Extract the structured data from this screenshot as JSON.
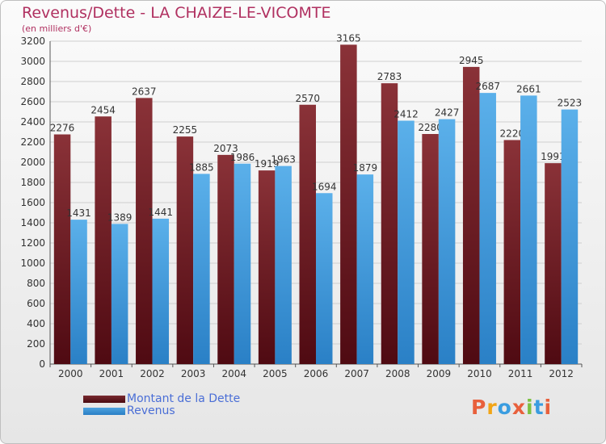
{
  "header": {
    "title": "Revenus/Dette - LA CHAIZE-LE-VICOMTE",
    "subtitle": "(en milliers d'€)"
  },
  "legend": {
    "items": [
      {
        "label": "Montant de la Dette",
        "color": "#7a2a30"
      },
      {
        "label": "Revenus",
        "color": "#4ea3e0"
      }
    ]
  },
  "logo": {
    "text": "Proxiti",
    "colors": [
      "#e8603c",
      "#f2a516",
      "#3a9de0",
      "#e8603c",
      "#7cc142",
      "#3a9de0",
      "#e8603c"
    ]
  },
  "chart_data": {
    "type": "bar",
    "title": "Revenus/Dette - LA CHAIZE-LE-VICOMTE",
    "subtitle": "(en milliers d'€)",
    "categories": [
      "2000",
      "2001",
      "2002",
      "2003",
      "2004",
      "2005",
      "2006",
      "2007",
      "2008",
      "2009",
      "2010",
      "2011",
      "2012"
    ],
    "series": [
      {
        "name": "Montant de la Dette",
        "color": "#7a2a30",
        "values": [
          2276,
          2454,
          2637,
          2255,
          2073,
          1919,
          2570,
          3165,
          2783,
          2280,
          2945,
          2220,
          1991
        ],
        "labels": [
          "2276",
          "2454",
          "2637",
          "2255",
          "2073",
          "1919",
          "2570",
          "3165",
          "2783",
          "2280",
          "2945",
          "2220",
          "1991"
        ]
      },
      {
        "name": "Revenus",
        "color": "#4ea3e0",
        "values": [
          1431,
          1389,
          1441,
          1885,
          1986,
          1963,
          1694,
          1879,
          2412,
          2427,
          2687,
          2661,
          2523
        ],
        "labels": [
          "1431",
          "1389",
          "1441",
          "1885",
          "1986",
          "1963",
          "1694",
          "1879",
          "2412",
          "2427",
          "2687",
          "2661",
          "2523"
        ]
      }
    ],
    "yticks": [
      "0",
      "200",
      "400",
      "600",
      "800",
      "1000",
      "1200",
      "1400",
      "1600",
      "1800",
      "2000",
      "2200",
      "2400",
      "2600",
      "2800",
      "3000",
      "3200"
    ],
    "ylim": [
      0,
      3200
    ],
    "grid": true,
    "legend_position": "bottom-left"
  }
}
